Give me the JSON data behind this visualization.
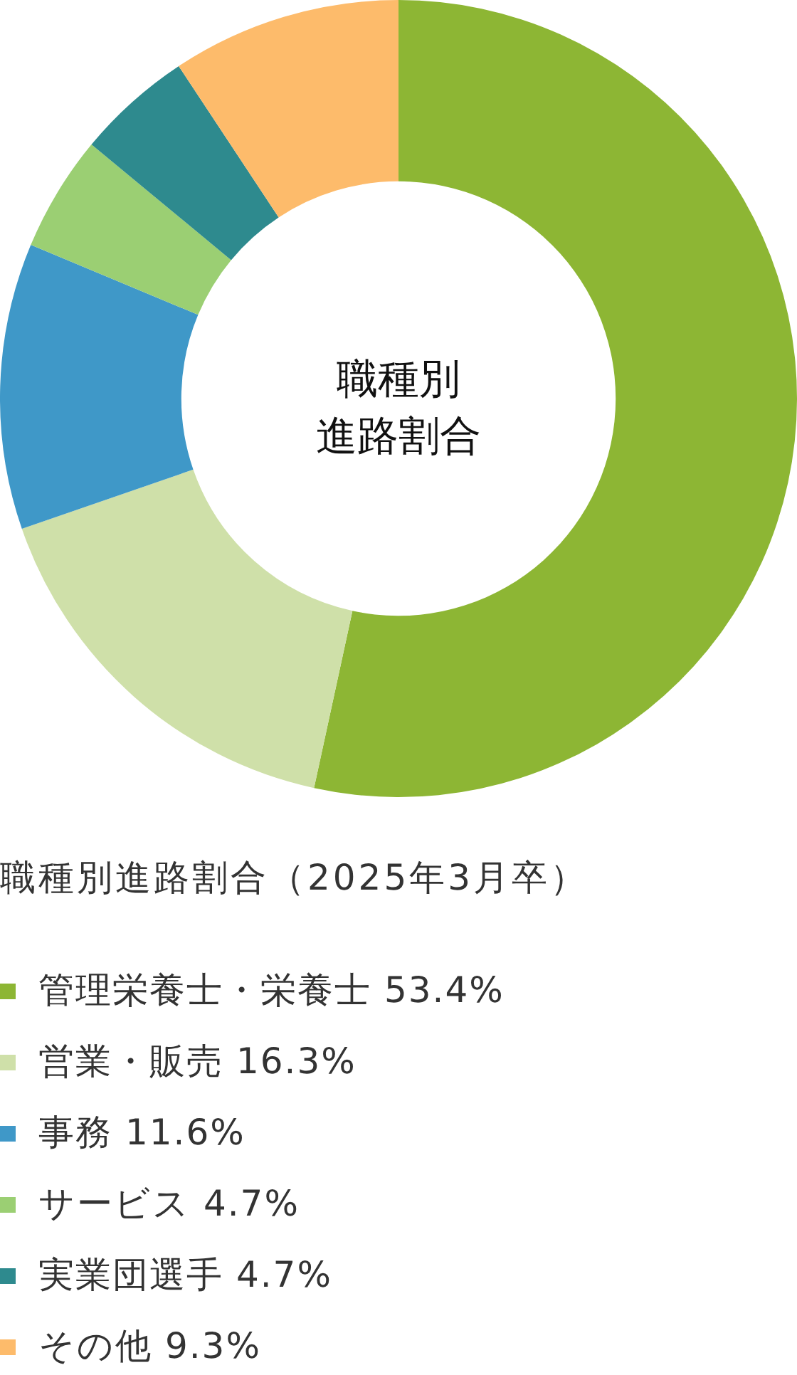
{
  "chart_data": {
    "type": "donut",
    "annotations": [
      "職種別",
      "進路割合"
    ],
    "legend_title": "職種別進路割合（2025年3月卒）",
    "categories": [
      "管理栄養士・栄養士",
      "営業・販売",
      "事務",
      "サービス",
      "実業団選手",
      "その他"
    ],
    "values": [
      53.4,
      16.3,
      11.6,
      4.7,
      4.7,
      9.3
    ],
    "colors": [
      "#8db634",
      "#cfe0a9",
      "#3f98c8",
      "#9bcf73",
      "#2e8a8e",
      "#fdbb6b"
    ],
    "value_labels": [
      "53.4%",
      "16.3%",
      "11.6%",
      "4.7%",
      "4.7%",
      "9.3%"
    ],
    "legend": "bottom"
  }
}
